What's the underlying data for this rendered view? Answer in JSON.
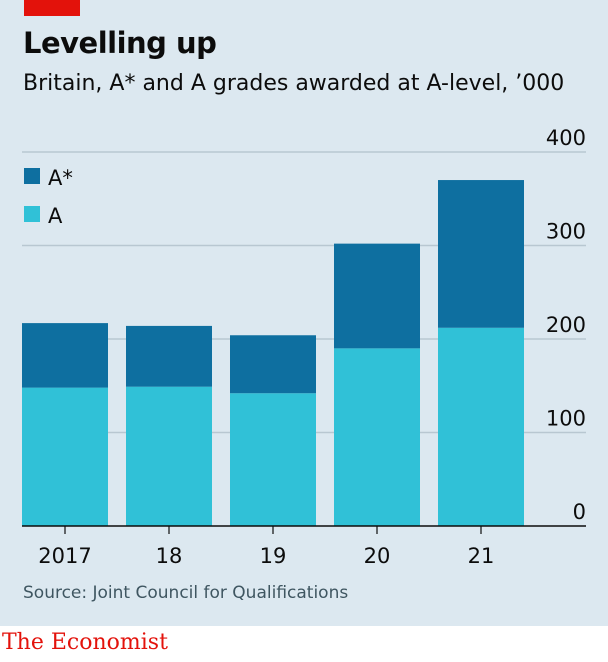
{
  "header": {
    "title": "Levelling up",
    "subtitle": "Britain, A* and A grades awarded at A-level, ’000"
  },
  "footer": {
    "source": "Source: Joint Council for Qualifications",
    "brand": "The Economist"
  },
  "colors": {
    "background": "#dce8f0",
    "brand_red": "#e3120b",
    "a_star": "#0e6fa0",
    "a": "#30c1d7",
    "grid": "#b8c7d1"
  },
  "chart_data": {
    "type": "bar",
    "stacked": true,
    "categories": [
      "2017",
      "18",
      "19",
      "20",
      "21"
    ],
    "series": [
      {
        "name": "A",
        "values": [
          148,
          149,
          142,
          190,
          212
        ],
        "color": "#30c1d7"
      },
      {
        "name": "A*",
        "values": [
          69,
          65,
          62,
          112,
          158
        ],
        "color": "#0e6fa0"
      }
    ],
    "ylim": [
      0,
      400
    ],
    "yticks": [
      0,
      100,
      200,
      300,
      400
    ],
    "ytick_labels": [
      "0",
      "100",
      "200",
      "300",
      "400"
    ],
    "grid": true,
    "legend_position": "top-left",
    "legend_order": [
      "A*",
      "A"
    ]
  }
}
